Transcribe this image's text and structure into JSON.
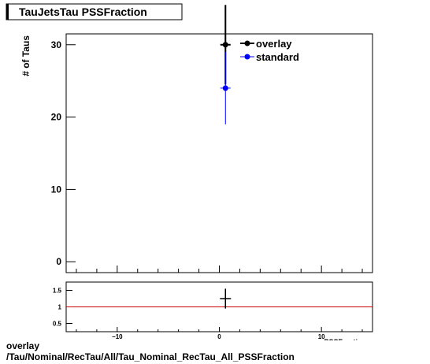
{
  "chart_data": [
    {
      "type": "scatter",
      "title": "TauJetsTau PSSFraction",
      "ylabel": "# of Taus",
      "xlabel": "PSSFraction",
      "xlim": [
        -15,
        15
      ],
      "ylim": [
        -1.5,
        31.5
      ],
      "x_ticks": [
        -10,
        0,
        10
      ],
      "y_ticks": [
        0,
        10,
        20,
        30
      ],
      "legend": {
        "placement": "top-right",
        "entries": [
          "overlay",
          "standard"
        ]
      },
      "series": [
        {
          "name": "overlay",
          "color": "#000000",
          "points": [
            {
              "x": 0.6,
              "y": 30,
              "xerr": 0.5,
              "yerr": 5.5
            }
          ]
        },
        {
          "name": "standard",
          "color": "#0000ff",
          "points": [
            {
              "x": 0.6,
              "y": 24,
              "xerr": 0.5,
              "yerr": 5
            }
          ]
        }
      ]
    },
    {
      "type": "scatter",
      "xlim": [
        -15,
        15
      ],
      "ylim": [
        0.25,
        1.75
      ],
      "x_ticks": [
        -10,
        0,
        10
      ],
      "y_ticks": [
        0.5,
        1,
        1.5
      ],
      "y_tick_labels": [
        "0.5",
        "1",
        "1.5"
      ],
      "reference_line": {
        "y": 1,
        "color": "#cc0000"
      },
      "series": [
        {
          "color": "#000000",
          "points": [
            {
              "x": 0.6,
              "y": 1.25,
              "xerr": 0.5,
              "yerr": 0.3
            }
          ]
        }
      ]
    }
  ],
  "caption": {
    "line1": "overlay",
    "line2": "/Tau/Nominal/RecTau/All/Tau_Nominal_RecTau_All_PSSFraction"
  }
}
